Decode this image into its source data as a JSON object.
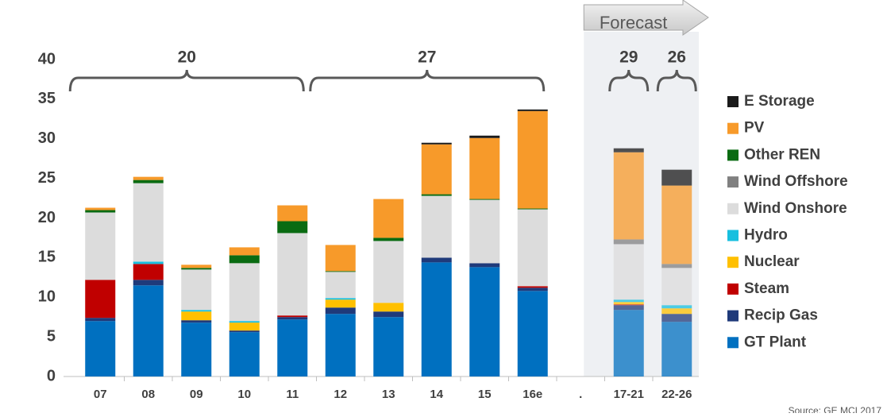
{
  "chart_data": {
    "type": "stacked_bar",
    "annotation": "Forecast",
    "source": "Source: GE MCI 2017",
    "categories": [
      "07",
      "08",
      "09",
      "10",
      "11",
      "12",
      "13",
      "14",
      "15",
      "16e",
      ".",
      "17-21",
      "22-26"
    ],
    "ylim": [
      0,
      40
    ],
    "yticks": [
      0,
      5,
      10,
      15,
      20,
      25,
      30,
      35,
      40
    ],
    "brace_labels": [
      {
        "value": 20,
        "from": "07",
        "to": "11"
      },
      {
        "value": 27,
        "from": "12",
        "to": "16e"
      },
      {
        "value": 29,
        "from": "17-21",
        "to": "17-21"
      },
      {
        "value": 26,
        "from": "22-26",
        "to": "22-26"
      }
    ],
    "series": [
      {
        "name": "GT Plant",
        "color": "#0070c0",
        "values": [
          7.0,
          11.5,
          6.8,
          5.6,
          7.2,
          7.9,
          7.5,
          14.4,
          13.8,
          10.8,
          null,
          8.4,
          6.9
        ]
      },
      {
        "name": "Recip Gas",
        "color": "#1f3a7a",
        "values": [
          0.4,
          0.7,
          0.3,
          0.2,
          0.3,
          0.8,
          0.7,
          0.6,
          0.5,
          0.4,
          null,
          0.6,
          1.0
        ]
      },
      {
        "name": "Steam",
        "color": "#c00000",
        "values": [
          4.8,
          2.0,
          0,
          0,
          0.2,
          0,
          0,
          0,
          0,
          0.2,
          null,
          0.1,
          0
        ]
      },
      {
        "name": "Nuclear",
        "color": "#ffc000",
        "values": [
          0,
          0,
          1.1,
          1.0,
          0,
          1.0,
          1.1,
          0,
          0,
          0,
          null,
          0.3,
          0.7
        ]
      },
      {
        "name": "Hydro",
        "color": "#17bfdf",
        "values": [
          0,
          0.3,
          0.2,
          0.2,
          0,
          0.2,
          0,
          0,
          0,
          0,
          null,
          0.3,
          0.4
        ]
      },
      {
        "name": "Wind Onshore",
        "color": "#dcdcdc",
        "values": [
          8.5,
          9.9,
          5.1,
          7.3,
          10.4,
          3.3,
          7.8,
          7.8,
          8.0,
          9.7,
          null,
          7.0,
          4.7
        ]
      },
      {
        "name": "Wind Offshore",
        "color": "#808080",
        "values": [
          0,
          0,
          0,
          0,
          0,
          0,
          0,
          0,
          0,
          0,
          null,
          0.6,
          0.5
        ]
      },
      {
        "name": "Other REN",
        "color": "#0a6b12",
        "values": [
          0.3,
          0.4,
          0.2,
          1.0,
          1.5,
          0.1,
          0.4,
          0.2,
          0.1,
          0.1,
          null,
          0,
          0
        ]
      },
      {
        "name": "PV",
        "color": "#f79a2a",
        "values": [
          0.3,
          0.4,
          0.4,
          1.0,
          2.0,
          3.3,
          4.9,
          6.3,
          7.7,
          12.3,
          null,
          11.0,
          9.9
        ]
      },
      {
        "name": "E Storage",
        "color": "#1a1a1a",
        "values": [
          0,
          0,
          0,
          0,
          0,
          0,
          0,
          0.2,
          0.3,
          0.2,
          null,
          0.5,
          2.0
        ]
      }
    ]
  }
}
